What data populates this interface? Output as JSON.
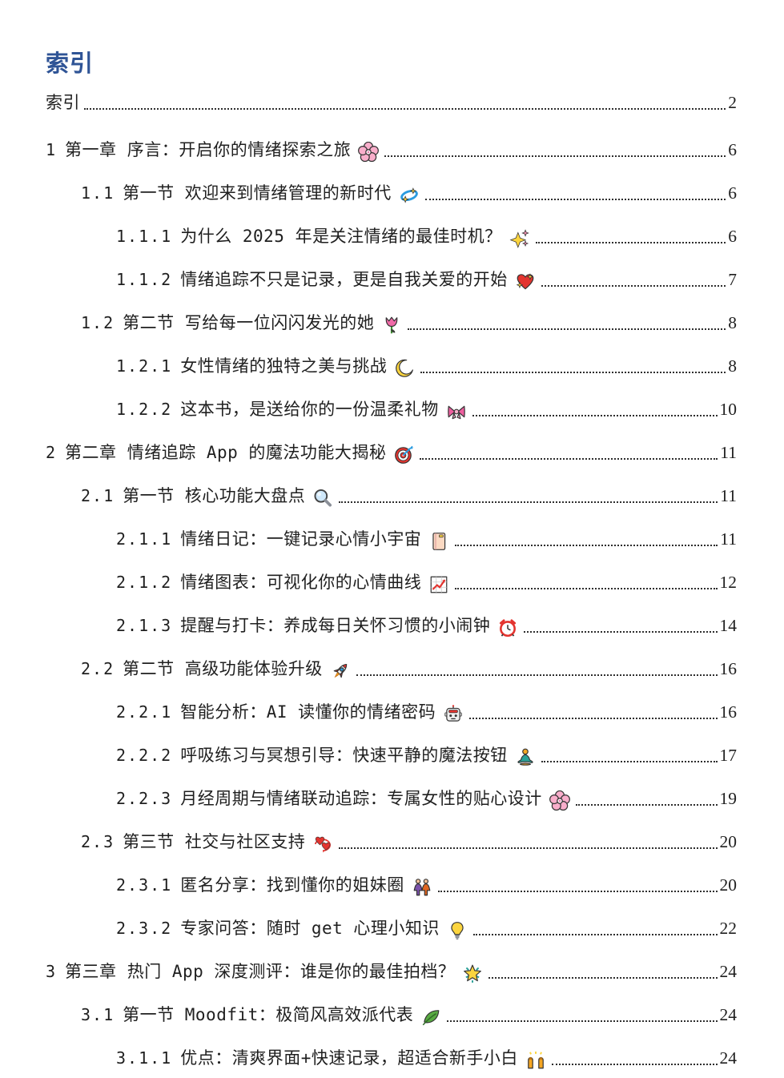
{
  "heading": {
    "title": "索引",
    "color": "#2F5496"
  },
  "colors": {
    "text": "#1f1f1f",
    "leader_dots": "#2e2e2e",
    "page_background": "#ffffff"
  },
  "toc": {
    "entries": [
      {
        "level": 0,
        "number": "",
        "label": "索引",
        "emoji": "",
        "icon": "",
        "page": "2"
      },
      {
        "level": 1,
        "number": "1",
        "label": "第一章 序言：开启你的情绪探索之旅",
        "emoji": "🌸",
        "icon": "cherry-blossom-icon",
        "page": "6"
      },
      {
        "level": 2,
        "number": "1.1",
        "label": "第一节 欢迎来到情绪管理的新时代",
        "emoji": "💫",
        "icon": "dizzy-swirl-icon",
        "page": "6"
      },
      {
        "level": 3,
        "number": "1.1.1",
        "label": "为什么 2025 年是关注情绪的最佳时机？",
        "emoji": "✨",
        "icon": "sparkles-icon",
        "page": "6"
      },
      {
        "level": 3,
        "number": "1.1.2",
        "label": "情绪追踪不只是记录，更是自我关爱的开始",
        "emoji": "💖",
        "icon": "sparkling-heart-icon",
        "page": "7"
      },
      {
        "level": 2,
        "number": "1.2",
        "label": "第二节 写给每一位闪闪发光的她",
        "emoji": "🌷",
        "icon": "tulip-icon",
        "page": "8"
      },
      {
        "level": 3,
        "number": "1.2.1",
        "label": "女性情绪的独特之美与挑战",
        "emoji": "🌙",
        "icon": "crescent-moon-icon",
        "page": "8"
      },
      {
        "level": 3,
        "number": "1.2.2",
        "label": "这本书，是送给你的一份温柔礼物",
        "emoji": "🎀",
        "icon": "ribbon-bow-icon",
        "page": "10"
      },
      {
        "level": 1,
        "number": "2",
        "label": "第二章 情绪追踪 App 的魔法功能大揭秘",
        "emoji": "🎯",
        "icon": "dart-target-icon",
        "page": "11"
      },
      {
        "level": 2,
        "number": "2.1",
        "label": "第一节 核心功能大盘点",
        "emoji": "🔍",
        "icon": "magnifier-icon",
        "page": "11"
      },
      {
        "level": 3,
        "number": "2.1.1",
        "label": "情绪日记：一键记录心情小宇宙",
        "emoji": "📔",
        "icon": "notebook-icon",
        "page": "11"
      },
      {
        "level": 3,
        "number": "2.1.2",
        "label": "情绪图表：可视化你的心情曲线",
        "emoji": "📈",
        "icon": "chart-increasing-icon",
        "page": "12"
      },
      {
        "level": 3,
        "number": "2.1.3",
        "label": "提醒与打卡：养成每日关怀习惯的小闹钟",
        "emoji": "⏰",
        "icon": "alarm-clock-icon",
        "page": "14"
      },
      {
        "level": 2,
        "number": "2.2",
        "label": "第二节 高级功能体验升级",
        "emoji": "🚀",
        "icon": "rocket-icon",
        "page": "16"
      },
      {
        "level": 3,
        "number": "2.2.1",
        "label": "智能分析：AI 读懂你的情绪密码",
        "emoji": "🤖",
        "icon": "robot-icon",
        "page": "16"
      },
      {
        "level": 3,
        "number": "2.2.2",
        "label": "呼吸练习与冥想引导：快速平静的魔法按钮",
        "emoji": "🧘",
        "icon": "meditation-icon",
        "page": "17"
      },
      {
        "level": 3,
        "number": "2.2.3",
        "label": "月经周期与情绪联动追踪：专属女性的贴心设计",
        "emoji": "🌸",
        "icon": "cherry-blossom-icon",
        "page": "19"
      },
      {
        "level": 2,
        "number": "2.3",
        "label": "第三节 社交与社区支持",
        "emoji": "💞",
        "icon": "revolving-hearts-icon",
        "page": "20"
      },
      {
        "level": 3,
        "number": "2.3.1",
        "label": "匿名分享：找到懂你的姐妹圈",
        "emoji": "👭",
        "icon": "two-women-icon",
        "page": "20"
      },
      {
        "level": 3,
        "number": "2.3.2",
        "label": "专家问答：随时 get 心理小知识",
        "emoji": "💡",
        "icon": "light-bulb-icon",
        "page": "22"
      },
      {
        "level": 1,
        "number": "3",
        "label": "第三章 热门 App 深度测评：谁是你的最佳拍档？",
        "emoji": "🌟",
        "icon": "glowing-star-icon",
        "page": "24"
      },
      {
        "level": 2,
        "number": "3.1",
        "label": "第一节 Moodfit：极简风高效派代表",
        "emoji": "🍃",
        "icon": "leaf-icon",
        "page": "24"
      },
      {
        "level": 3,
        "number": "3.1.1",
        "label": "优点：清爽界面+快速记录，超适合新手小白",
        "emoji": "🙌",
        "icon": "raising-hands-icon",
        "page": "24"
      }
    ]
  }
}
